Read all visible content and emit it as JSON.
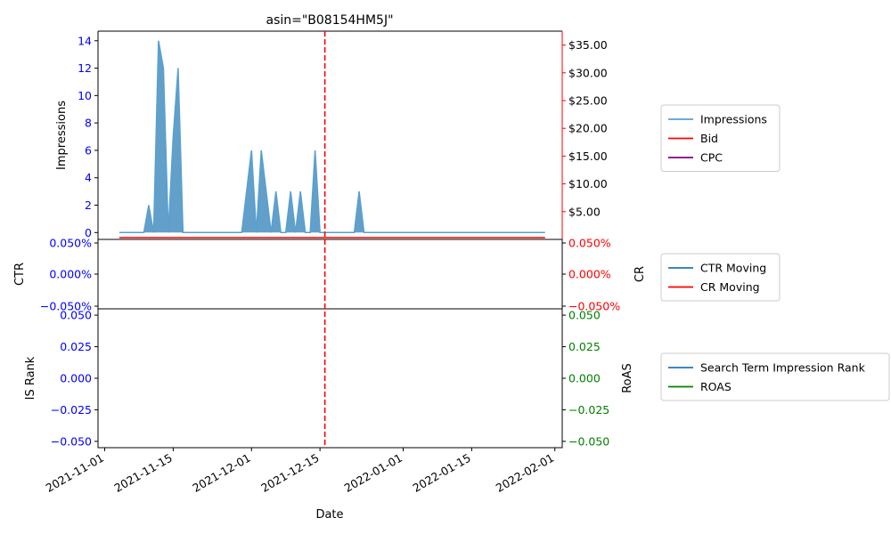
{
  "chart_data": {
    "type": "line",
    "title": "asin=\"B08154HM5J\"",
    "xlabel": "Date",
    "x_ticks": [
      "2021-11-01",
      "2021-11-15",
      "2021-12-01",
      "2021-12-15",
      "2022-01-01",
      "2022-01-15",
      "2022-02-01"
    ],
    "vline_date": "2021-12-16",
    "top_panel": {
      "ylabel": "Impressions",
      "ylim": [
        -0.5,
        14.7
      ],
      "yticks": [
        "0",
        "2",
        "4",
        "6",
        "8",
        "10",
        "12",
        "14"
      ],
      "left_tick_color": "#0000ff",
      "right_ylim": [
        0,
        37.5
      ],
      "right_yticks": [
        "$5.00",
        "$10.00",
        "$15.00",
        "$20.00",
        "$25.00",
        "$30.00",
        "$35.00"
      ],
      "right_tick_values": [
        5,
        10,
        15,
        20,
        25,
        30,
        35
      ],
      "right_tick_color": "#000000",
      "right_spine_color": "#ff0000",
      "legend": [
        "Impressions",
        "Bid",
        "CPC"
      ],
      "series": [
        {
          "name": "Impressions",
          "color": "#1f77b4",
          "x": [
            "2021-11-04",
            "2021-11-05",
            "2021-11-06",
            "2021-11-07",
            "2021-11-08",
            "2021-11-09",
            "2021-11-10",
            "2021-11-11",
            "2021-11-12",
            "2021-11-13",
            "2021-11-14",
            "2021-11-15",
            "2021-11-16",
            "2021-11-17",
            "2021-11-18",
            "2021-11-19",
            "2021-11-20",
            "2021-11-21",
            "2021-11-22",
            "2021-11-23",
            "2021-11-24",
            "2021-11-25",
            "2021-11-26",
            "2021-11-27",
            "2021-11-28",
            "2021-11-29",
            "2021-11-30",
            "2021-12-01",
            "2021-12-02",
            "2021-12-03",
            "2021-12-04",
            "2021-12-05",
            "2021-12-06",
            "2021-12-07",
            "2021-12-08",
            "2021-12-09",
            "2021-12-10",
            "2021-12-11",
            "2021-12-12",
            "2021-12-13",
            "2021-12-14",
            "2021-12-15",
            "2021-12-16",
            "2021-12-17",
            "2021-12-18",
            "2021-12-19",
            "2021-12-20",
            "2021-12-21",
            "2021-12-22",
            "2021-12-23",
            "2021-12-24",
            "2022-01-30"
          ],
          "y": [
            0,
            0,
            0,
            0,
            0,
            0,
            2,
            0,
            14,
            12,
            0,
            7,
            12,
            0,
            0,
            0,
            0,
            0,
            0,
            0,
            0,
            0,
            0,
            0,
            0,
            0,
            3,
            6,
            0,
            6,
            3,
            0,
            3,
            0,
            0,
            3,
            0,
            3,
            0,
            0,
            6,
            0,
            0,
            0,
            0,
            0,
            0,
            0,
            0,
            3,
            0,
            0
          ]
        },
        {
          "name": "Bid",
          "color": "#ff0000",
          "x": [
            "2021-11-04",
            "2022-01-30"
          ],
          "y": [
            0.75,
            0.75
          ]
        }
      ]
    },
    "middle_panel": {
      "ylabel": "CTR",
      "ylim": [
        -0.05,
        0.05
      ],
      "yticks": [
        "0.050%",
        "0.000%",
        "−0.050%"
      ],
      "left_tick_color": "#0000ff",
      "right_ylabel": "CR",
      "right_yticks": [
        "0.050%",
        "0.000%",
        "−0.050%"
      ],
      "right_tick_color": "#ff0000",
      "legend": [
        "CTR Moving",
        "CR Moving"
      ],
      "legend_colors": [
        "#1f77b4",
        "#ff0000"
      ]
    },
    "bottom_panel": {
      "ylabel": "IS Rank",
      "ylim": [
        -0.055,
        0.055
      ],
      "yticks": [
        "0.050",
        "0.025",
        "0.000",
        "−0.025",
        "−0.050"
      ],
      "left_tick_color": "#0000ff",
      "right_ylabel": "RoAS",
      "right_yticks": [
        "0.050",
        "0.025",
        "0.000",
        "−0.025",
        "−0.050"
      ],
      "right_tick_color": "#008000",
      "legend": [
        "Search Term Impression Rank",
        "ROAS"
      ],
      "legend_colors": [
        "#1f77b4",
        "#008000"
      ]
    },
    "top_legend_colors": [
      "#5a9fd0",
      "#ff0000",
      "#800080"
    ]
  }
}
